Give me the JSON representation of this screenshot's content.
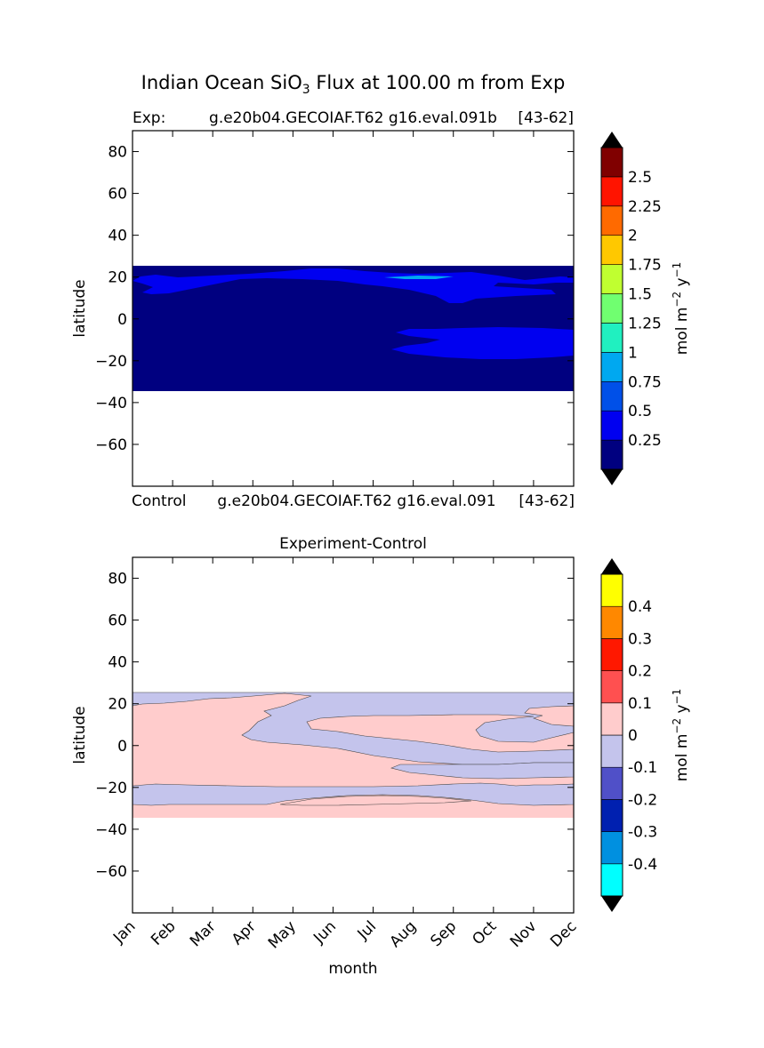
{
  "figure": {
    "title_prefix": "Indian Ocean SiO",
    "title_sub": "3",
    "title_suffix": " Flux at 100.00 m from Exp"
  },
  "panels": {
    "exp": {
      "label_left": "Exp:",
      "label_mid": "g.e20b04.GECOIAF.T62 g16.eval.091b",
      "label_right": "[43-62]",
      "bottom_left": "Control",
      "bottom_mid": "g.e20b04.GECOIAF.T62 g16.eval.091",
      "bottom_right": "[43-62]"
    },
    "diff": {
      "title": "Experiment-Control"
    }
  },
  "axes": {
    "ylabel": "latitude",
    "xlabel": "month",
    "ylim": [
      -80,
      90
    ],
    "yticks": [
      80,
      60,
      40,
      20,
      0,
      -20,
      -40,
      -60
    ],
    "ytick_labels": [
      "80",
      "60",
      "40",
      "20",
      "0",
      "−20",
      "−40",
      "−60"
    ],
    "months": [
      "Jan",
      "Feb",
      "Mar",
      "Apr",
      "May",
      "Jun",
      "Jul",
      "Aug",
      "Sep",
      "Oct",
      "Nov",
      "Dec"
    ]
  },
  "colorbars": {
    "top": {
      "unit_base": "mol m",
      "unit_exp1": "−2",
      "unit_mid": " y",
      "unit_exp2": "−1",
      "levels": [
        0,
        0.25,
        0.5,
        0.75,
        1,
        1.25,
        1.5,
        1.75,
        2,
        2.25,
        2.5,
        2.75
      ],
      "tick_labels": [
        "0.25",
        "0.5",
        "0.75",
        "1",
        "1.25",
        "1.5",
        "1.75",
        "2",
        "2.25",
        "2.5"
      ],
      "colors": [
        "#000080",
        "#0000f0",
        "#0050e8",
        "#00a8f0",
        "#20f0c0",
        "#70ff70",
        "#c0ff30",
        "#ffc800",
        "#ff6a00",
        "#ff1400",
        "#800000"
      ]
    },
    "bottom": {
      "unit_base": "mol m",
      "unit_exp1": "−2",
      "unit_mid": " y",
      "unit_exp2": "−1",
      "levels": [
        -0.5,
        -0.4,
        -0.3,
        -0.2,
        -0.1,
        0,
        0.1,
        0.2,
        0.3,
        0.4,
        0.5
      ],
      "tick_labels": [
        "-0.4",
        "-0.3",
        "-0.2",
        "-0.1",
        "0",
        "0.1",
        "0.2",
        "0.3",
        "0.4"
      ],
      "colors": [
        "#00ffff",
        "#0090e0",
        "#0020b0",
        "#5050c8",
        "#c4c4ec",
        "#ffcccc",
        "#ff5050",
        "#ff1800",
        "#ff8800",
        "#ffff00"
      ]
    }
  },
  "chart_data": [
    {
      "type": "heatmap",
      "title": "Exp:  g.e20b04.GECOIAF.T62 g16.eval.091b  [43-62]",
      "xlabel": "",
      "ylabel": "latitude",
      "x_categories": [
        "Jan",
        "Feb",
        "Mar",
        "Apr",
        "May",
        "Jun",
        "Jul",
        "Aug",
        "Sep",
        "Oct",
        "Nov",
        "Dec"
      ],
      "xlim": [
        0,
        11
      ],
      "ylim": [
        -80,
        90
      ],
      "data_lat_range": [
        -34,
        26
      ],
      "background_value_range": [
        0,
        0.25
      ],
      "regions": [
        {
          "value_range": [
            0.25,
            0.5
          ],
          "lat_range": [
            8,
            23
          ],
          "months": [
            "Jan",
            "Dec"
          ],
          "note": "northern band"
        },
        {
          "value_range": [
            0.25,
            0.5
          ],
          "lat_range": [
            -18,
            -5
          ],
          "months": [
            "Jul",
            "Dec"
          ],
          "note": "southern band"
        },
        {
          "value_range": [
            0.75,
            1.0
          ],
          "lat_range": [
            19,
            21
          ],
          "months": [
            "Jul",
            "Aug"
          ],
          "note": "small patch"
        }
      ],
      "colorbar_label": "mol m^-2 y^-1"
    },
    {
      "type": "heatmap",
      "title": "Experiment-Control",
      "xlabel": "month",
      "ylabel": "latitude",
      "x_categories": [
        "Jan",
        "Feb",
        "Mar",
        "Apr",
        "May",
        "Jun",
        "Jul",
        "Aug",
        "Sep",
        "Oct",
        "Nov",
        "Dec"
      ],
      "xlim": [
        0,
        11
      ],
      "ylim": [
        -80,
        90
      ],
      "data_lat_range": [
        -34,
        26
      ],
      "background_value_range": [
        0,
        0.1
      ],
      "regions": [
        {
          "value_range": [
            -0.1,
            0
          ],
          "lat_range": [
            4,
            26
          ],
          "months": [
            "Jan",
            "Dec"
          ],
          "note": "northern negative band"
        },
        {
          "value_range": [
            -0.1,
            0
          ],
          "lat_range": [
            -28,
            -18
          ],
          "months": [
            "Jan",
            "Dec"
          ],
          "note": "southern negative band"
        },
        {
          "value_range": [
            -0.1,
            0
          ],
          "lat_range": [
            -15,
            -8
          ],
          "months": [
            "Aug",
            "Dec"
          ],
          "note": "mid negative tongue"
        }
      ],
      "colorbar_label": "mol m^-2 y^-1"
    }
  ]
}
